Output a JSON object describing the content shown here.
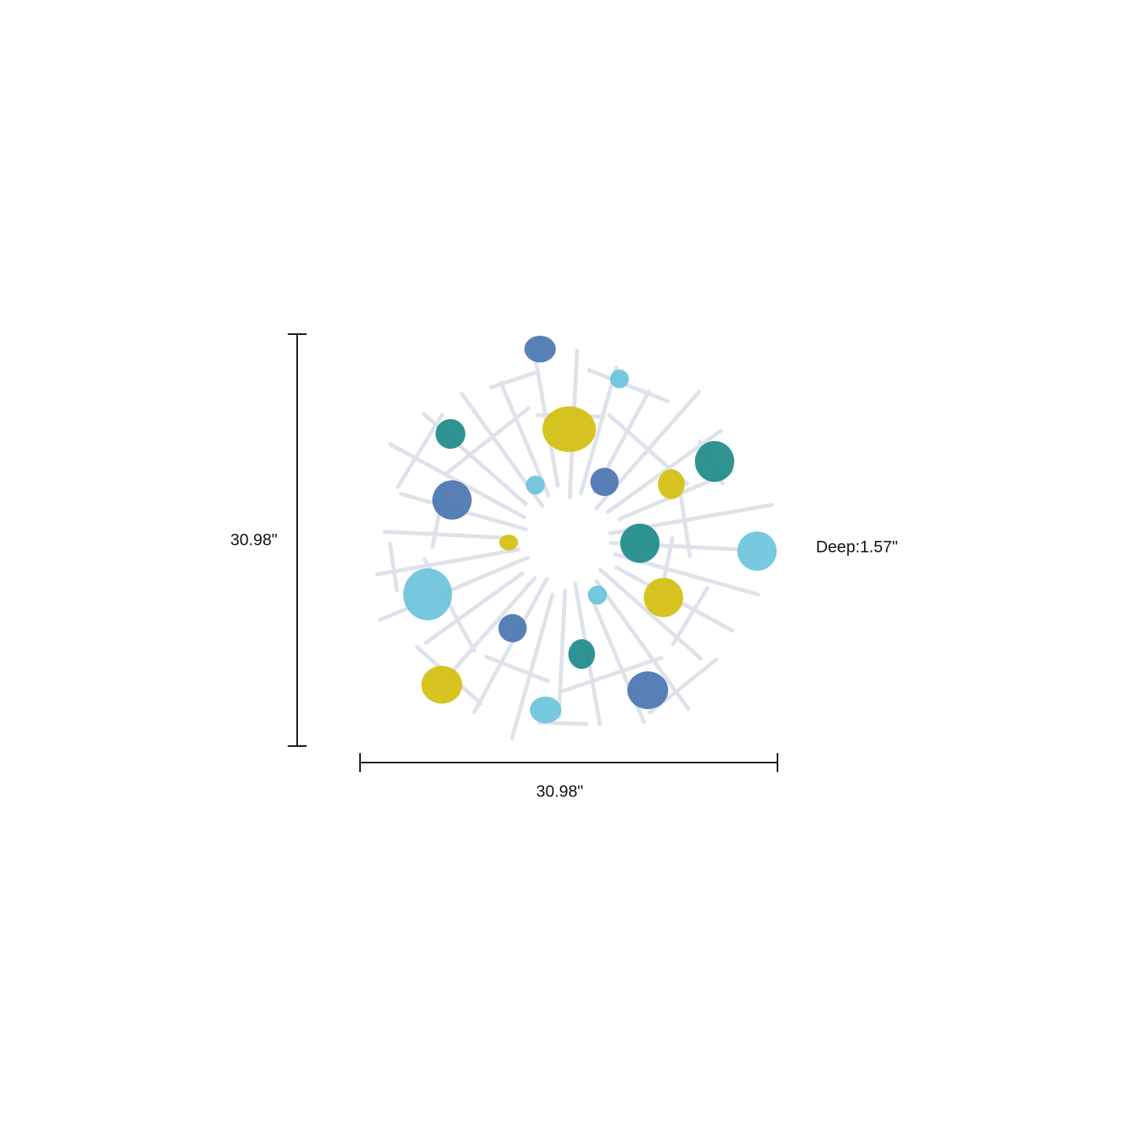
{
  "dimensions": {
    "height": "30.98\"",
    "width": "30.98\"",
    "depth": "Deep:1.57\""
  }
}
